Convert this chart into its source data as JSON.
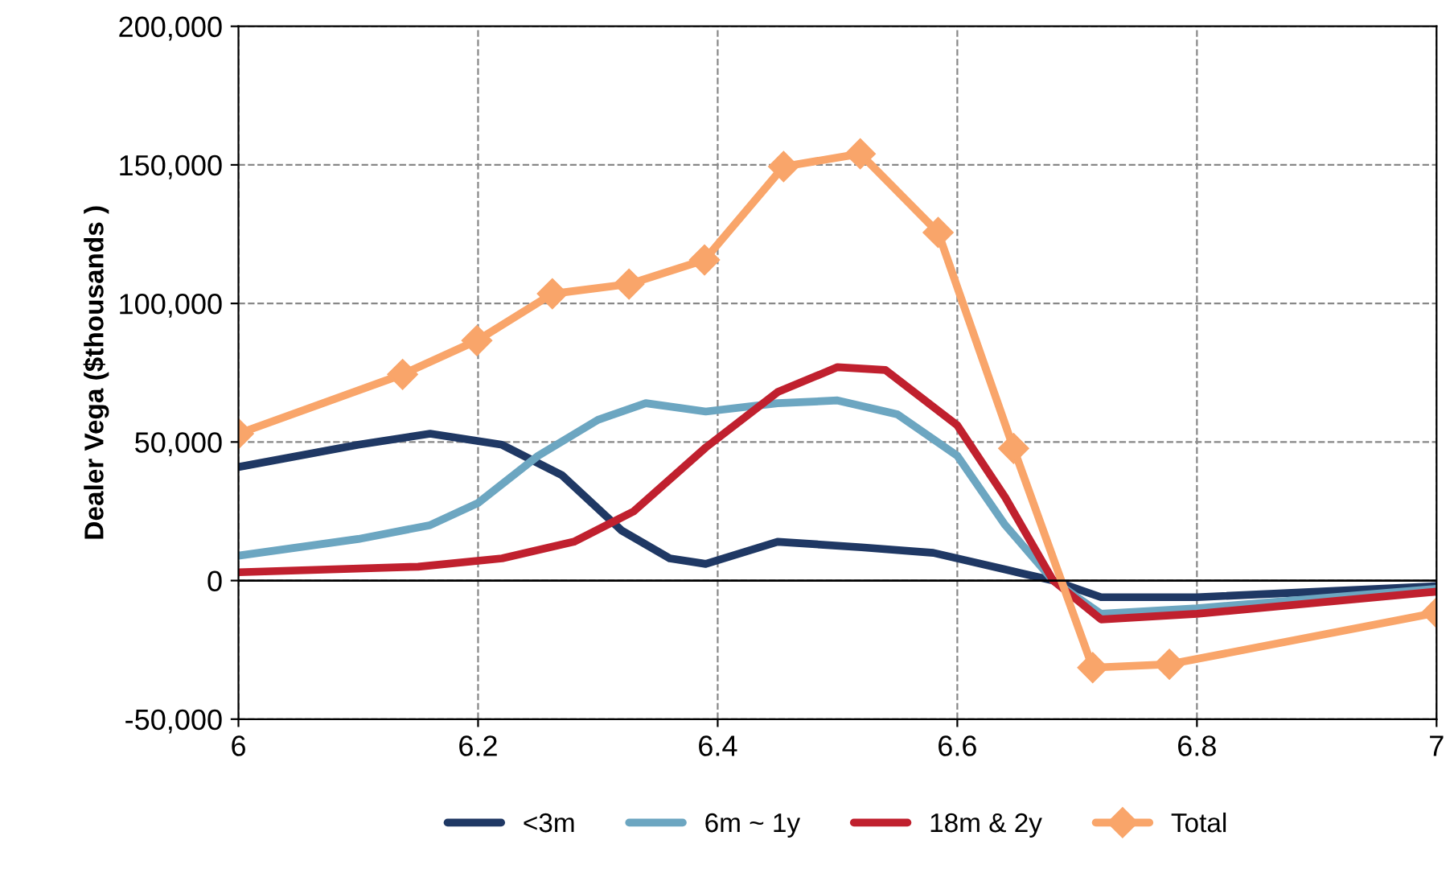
{
  "chart_data": {
    "type": "line",
    "ylabel": "Dealer Vega ($thousands )",
    "xlim": [
      6,
      7
    ],
    "xticks": [
      6,
      6.2,
      6.4,
      6.6,
      6.8,
      7
    ],
    "ylim": [
      -50000,
      200000
    ],
    "yticks": [
      {
        "value": -50000,
        "label": "-50,000"
      },
      {
        "value": 0,
        "label": "0"
      },
      {
        "value": 50000,
        "label": "50,000"
      },
      {
        "value": 100000,
        "label": "100,000"
      },
      {
        "value": 150000,
        "label": "150,000"
      },
      {
        "value": 200000,
        "label": "200,000"
      }
    ],
    "grid": true,
    "legend": "bottom",
    "line_style": "solid",
    "series": [
      {
        "name": "<3m",
        "color": "#1f3864",
        "marker": "none",
        "x": [
          6.0,
          6.1,
          6.16,
          6.22,
          6.27,
          6.32,
          6.36,
          6.39,
          6.45,
          6.52,
          6.58,
          6.64,
          6.68,
          6.72,
          6.8,
          7.0
        ],
        "values": [
          41000,
          49000,
          53000,
          49000,
          38000,
          18000,
          8000,
          6000,
          14000,
          12000,
          10000,
          4000,
          0,
          -6000,
          -6000,
          -2000
        ]
      },
      {
        "name": "6m ~ 1y",
        "color": "#6ca6c1",
        "marker": "none",
        "x": [
          6.0,
          6.1,
          6.16,
          6.2,
          6.25,
          6.3,
          6.34,
          6.39,
          6.45,
          6.5,
          6.55,
          6.6,
          6.64,
          6.68,
          6.72,
          6.8,
          7.0
        ],
        "values": [
          9000,
          15000,
          20000,
          28000,
          45000,
          58000,
          64000,
          61000,
          64000,
          65000,
          60000,
          45000,
          20000,
          0,
          -12000,
          -10000,
          -3000
        ]
      },
      {
        "name": "18m & 2y",
        "color": "#c0202e",
        "marker": "none",
        "x": [
          6.0,
          6.15,
          6.22,
          6.28,
          6.33,
          6.39,
          6.45,
          6.5,
          6.54,
          6.6,
          6.64,
          6.68,
          6.72,
          6.8,
          7.0
        ],
        "values": [
          3000,
          5000,
          8000,
          14000,
          25000,
          48000,
          68000,
          77000,
          76000,
          56000,
          30000,
          0,
          -14000,
          -12000,
          -4000
        ]
      },
      {
        "name": "Total",
        "color": "#f9a56a",
        "marker": "diamond",
        "x": [
          6.0,
          6.137,
          6.199,
          6.262,
          6.326,
          6.389,
          6.455,
          6.519,
          6.584,
          6.647,
          6.713,
          6.777,
          7.0
        ],
        "values": [
          53000,
          74400,
          86600,
          103500,
          107000,
          115700,
          149400,
          154000,
          125600,
          47700,
          -31400,
          -30200,
          -11600
        ]
      }
    ]
  }
}
